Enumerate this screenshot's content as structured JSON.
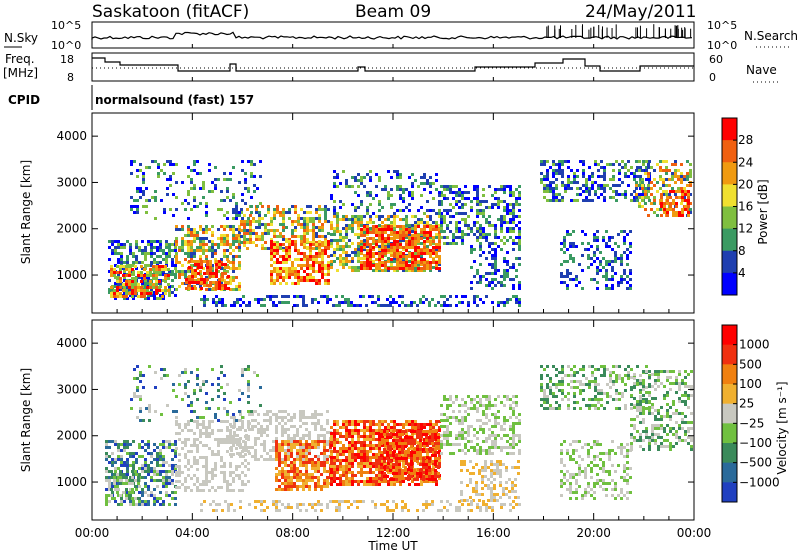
{
  "header": {
    "station": "Saskatoon (fitACF)",
    "beam": "Beam 09",
    "date": "24/May/2011"
  },
  "top_panels": {
    "nsky_label": "N.Sky",
    "nsky_ticks": [
      "10^5",
      "10^0"
    ],
    "nsearch_label": "N.Search",
    "freq_label_line1": "Freq.",
    "freq_label_line2": "[MHz]",
    "freq_ticks": [
      "18",
      "8"
    ],
    "nave_ticks": [
      "60",
      "0"
    ],
    "nave_label": "Nave",
    "cpid_label": "CPID",
    "cpid_value": "normalsound (fast) 157"
  },
  "chart_data": [
    {
      "type": "heatmap",
      "name": "power",
      "ylabel": "Slant Range [km]",
      "yticks": [
        "1000",
        "2000",
        "3000",
        "4000"
      ],
      "ylim": [
        180,
        4500
      ],
      "colorbar_label": "Power [dB]",
      "colorbar_ticks": [
        "4",
        "8",
        "12",
        "16",
        "20",
        "24",
        "28"
      ],
      "colors": [
        "#0000ff",
        "#1f3fb0",
        "#3a9a62",
        "#7fbf3f",
        "#f0e030",
        "#f09a10",
        "#f06010",
        "#ff0000"
      ]
    },
    {
      "type": "heatmap",
      "name": "velocity",
      "ylabel": "Slant Range [km]",
      "yticks": [
        "1000",
        "2000",
        "3000",
        "4000"
      ],
      "ylim": [
        180,
        4500
      ],
      "colorbar_label": "Velocity [m s⁻¹]",
      "colorbar_ticks": [
        "1000",
        "500",
        "100",
        "25",
        "−25",
        "−100",
        "−500",
        "−1000"
      ],
      "colors": [
        "#2040c0",
        "#2a6a9a",
        "#3a8a5a",
        "#70c040",
        "#c8c8c0",
        "#f0b030",
        "#f08010",
        "#f03010",
        "#ff0000"
      ]
    }
  ],
  "xaxis": {
    "label": "Time UT",
    "ticks": [
      "00:00",
      "04:00",
      "08:00",
      "12:00",
      "16:00",
      "20:00",
      "00:00"
    ]
  }
}
